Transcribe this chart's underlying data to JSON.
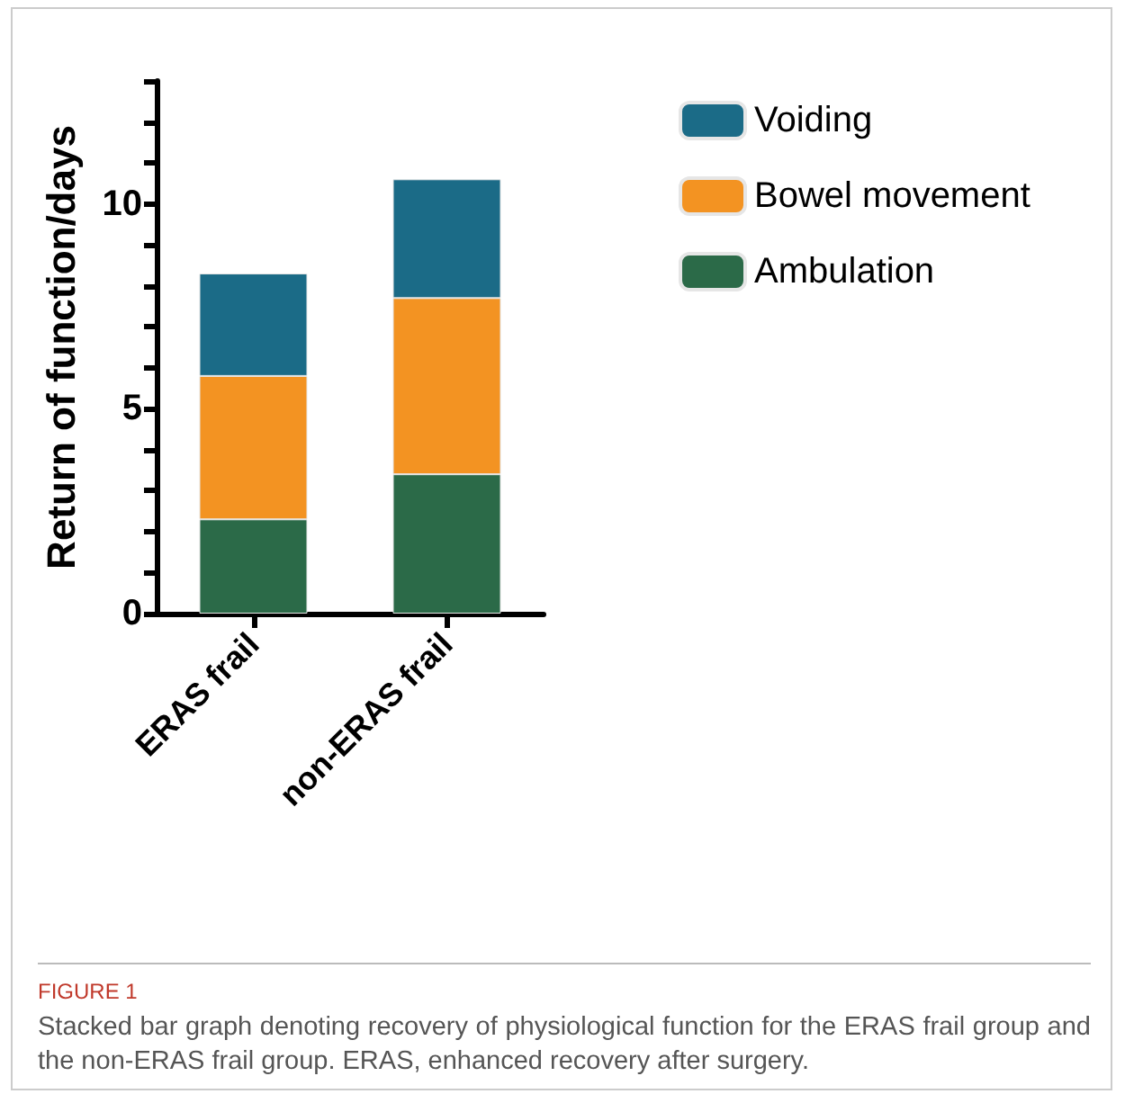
{
  "chart_data": {
    "type": "bar",
    "stacked": true,
    "ylabel": "Return of function/days",
    "categories": [
      "ERAS frail",
      "non-ERAS frail"
    ],
    "series": [
      {
        "name": "Ambulation",
        "color": "#2b6a48",
        "values": [
          2.3,
          3.4
        ]
      },
      {
        "name": "Bowel movement",
        "color": "#f39322",
        "values": [
          3.5,
          4.3
        ]
      },
      {
        "name": "Voiding",
        "color": "#1b6b87",
        "values": [
          2.5,
          2.9
        ]
      }
    ],
    "ylim": [
      0,
      13
    ],
    "yticks": [
      0,
      {
        "value": 1,
        "label": null
      },
      {
        "value": 2,
        "label": null
      },
      {
        "value": 3,
        "label": null
      },
      {
        "value": 4,
        "label": null
      },
      5,
      {
        "value": 6,
        "label": null
      },
      {
        "value": 7,
        "label": null
      },
      {
        "value": 8,
        "label": null
      },
      {
        "value": 9,
        "label": null
      },
      10,
      {
        "value": 11,
        "label": null
      },
      {
        "value": 12,
        "label": null
      },
      {
        "value": 13,
        "label": null
      }
    ],
    "grid": false,
    "legend": "top right",
    "annotations": [
      "FIGURE 1",
      "Stacked bar graph denoting recovery of physiological function for the ERAS frail group and the non-ERAS frail group. ERAS, enhanced recovery after surgery."
    ]
  }
}
